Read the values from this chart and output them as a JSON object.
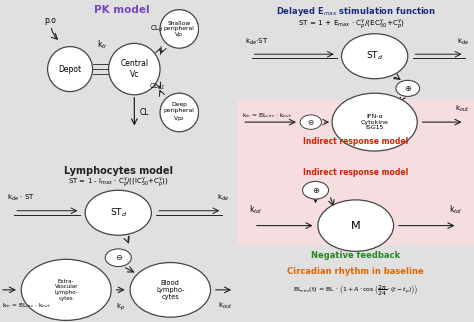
{
  "bg_tl": "#ece8f5",
  "bg_tr": "#e8f1fa",
  "bg_bl": "#e8e8e8",
  "bg_br_top": "#f5e8ea",
  "bg_br_bot": "#f0f0f0",
  "pk_title": "PK model",
  "lymph_title": "Lymphocytes model",
  "emax_title": "Delayed E$_{max}$ stimulation function",
  "indirect_label": "Indirect response model",
  "negative_label": "Negative feedback",
  "circadian_label": "Circadian rhythm in baseline"
}
